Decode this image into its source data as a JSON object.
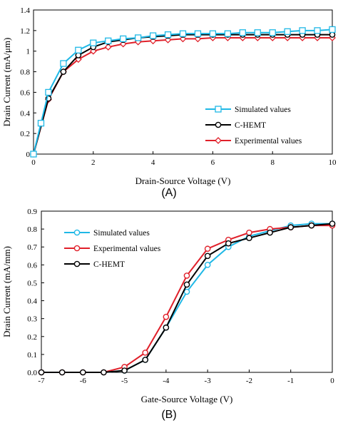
{
  "chart_data": [
    {
      "panel_label": "(A)",
      "type": "line",
      "xlabel": "Drain-Source  Voltage  (V)",
      "ylabel": "Drain Current (mA/μm)",
      "xlim": [
        0,
        10
      ],
      "ylim": [
        0,
        1.4
      ],
      "xticks": [
        0,
        2,
        4,
        6,
        8,
        10
      ],
      "xtick_labels": [
        "0",
        "2",
        "4",
        "6",
        "8",
        "10"
      ],
      "yticks": [
        0,
        0.2,
        0.4,
        0.6,
        0.8,
        1,
        1.2,
        1.4
      ],
      "ytick_labels": [
        "0",
        "0.2",
        "0.4",
        "0.6",
        "0.8",
        "1",
        "1.2",
        "1.4"
      ],
      "grid": false,
      "legend_position": "bottom-right",
      "series": [
        {
          "name": "Simulated values",
          "color": "#1fb8e6",
          "marker": "square",
          "x": [
            0,
            0.25,
            0.5,
            1,
            1.5,
            2,
            2.5,
            3,
            3.5,
            4,
            4.5,
            5,
            5.5,
            6,
            6.5,
            7,
            7.5,
            8,
            8.5,
            9,
            9.5,
            10
          ],
          "values": [
            0,
            0.3,
            0.6,
            0.88,
            1.01,
            1.08,
            1.1,
            1.12,
            1.13,
            1.15,
            1.16,
            1.17,
            1.17,
            1.17,
            1.17,
            1.18,
            1.18,
            1.18,
            1.19,
            1.2,
            1.2,
            1.21
          ]
        },
        {
          "name": "C-HEMT",
          "color": "#000000",
          "marker": "circle",
          "x": [
            0,
            0.5,
            1,
            1.5,
            2,
            2.5,
            3,
            3.5,
            4,
            4.5,
            5,
            5.5,
            6,
            6.5,
            7,
            7.5,
            8,
            8.5,
            9,
            9.5,
            10
          ],
          "values": [
            0,
            0.54,
            0.8,
            0.96,
            1.04,
            1.09,
            1.11,
            1.13,
            1.14,
            1.15,
            1.16,
            1.16,
            1.16,
            1.16,
            1.16,
            1.16,
            1.16,
            1.16,
            1.16,
            1.16,
            1.16
          ]
        },
        {
          "name": "Experimental values",
          "color": "#e0202a",
          "marker": "diamond",
          "x": [
            0,
            0.5,
            1,
            1.5,
            2,
            2.5,
            3,
            3.5,
            4,
            4.5,
            5,
            5.5,
            6,
            6.5,
            7,
            7.5,
            8,
            8.5,
            9,
            9.5,
            10
          ],
          "values": [
            0,
            0.53,
            0.8,
            0.92,
            1.0,
            1.04,
            1.07,
            1.09,
            1.1,
            1.11,
            1.12,
            1.12,
            1.13,
            1.13,
            1.13,
            1.13,
            1.13,
            1.13,
            1.13,
            1.13,
            1.13
          ]
        }
      ]
    },
    {
      "panel_label": "(B)",
      "type": "line",
      "xlabel": "Gate-Source Voltage  (V)",
      "ylabel": "Drain Current (mA/mm)",
      "xlim": [
        -7,
        0
      ],
      "ylim": [
        0,
        0.9
      ],
      "xticks": [
        -7,
        -6,
        -5,
        -4,
        -3,
        -2,
        -1,
        0
      ],
      "xtick_labels": [
        "-7",
        "-6",
        "-5",
        "-4",
        "-3",
        "-2",
        "-1",
        "0"
      ],
      "yticks": [
        0,
        0.1,
        0.2,
        0.3,
        0.4,
        0.5,
        0.6,
        0.7,
        0.8,
        0.9
      ],
      "ytick_labels": [
        "0.0",
        "0.1",
        "0.2",
        "0.3",
        "0.4",
        "0.5",
        "0.6",
        "0.7",
        "0.8",
        "0.9"
      ],
      "grid": false,
      "legend_position": "top-left",
      "series": [
        {
          "name": "Simulated values",
          "color": "#1fb8e6",
          "marker": "circle",
          "x": [
            -7,
            -6.5,
            -6,
            -5.5,
            -5,
            -4.5,
            -4,
            -3.5,
            -3,
            -2.5,
            -2,
            -1.5,
            -1,
            -0.5,
            0
          ],
          "values": [
            0,
            0,
            0,
            0,
            0.01,
            0.07,
            0.25,
            0.45,
            0.6,
            0.7,
            0.76,
            0.79,
            0.82,
            0.83,
            0.83
          ]
        },
        {
          "name": "Experimental values",
          "color": "#e0202a",
          "marker": "circle",
          "x": [
            -7,
            -6.5,
            -6,
            -5.5,
            -5,
            -4.5,
            -4,
            -3.5,
            -3,
            -2.5,
            -2,
            -1.5,
            -1,
            -0.5,
            0
          ],
          "values": [
            0,
            0,
            0,
            0,
            0.03,
            0.11,
            0.31,
            0.54,
            0.69,
            0.74,
            0.78,
            0.8,
            0.81,
            0.82,
            0.82
          ]
        },
        {
          "name": "C-HEMT",
          "color": "#000000",
          "marker": "circle",
          "x": [
            -7,
            -6.5,
            -6,
            -5.5,
            -5,
            -4.5,
            -4,
            -3.5,
            -3,
            -2.5,
            -2,
            -1.5,
            -1,
            -0.5,
            0
          ],
          "values": [
            0,
            0,
            0,
            0,
            0.01,
            0.07,
            0.25,
            0.49,
            0.65,
            0.72,
            0.75,
            0.78,
            0.81,
            0.82,
            0.83
          ]
        }
      ]
    }
  ]
}
